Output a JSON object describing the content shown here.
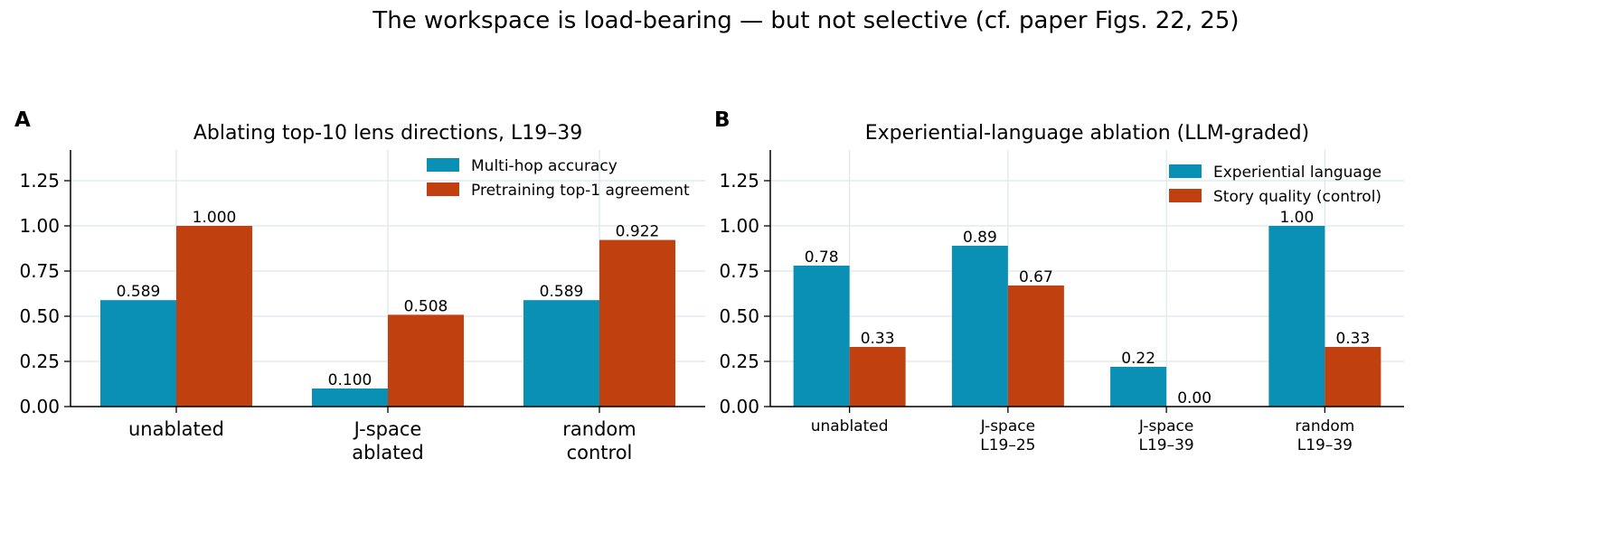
{
  "suptitle": "The workspace is load-bearing — but not selective (cf. paper Figs. 22, 25)",
  "colors": {
    "series1": "#0a8fb5",
    "series2": "#c1400f",
    "grid": "#dde6ea",
    "axis": "#000000"
  },
  "chart_data": [
    {
      "panel": "A",
      "type": "bar",
      "title": "Ablating top-10 lens directions, L19–39",
      "categories": [
        "unablated",
        "J-space\nablated",
        "random\ncontrol"
      ],
      "series": [
        {
          "name": "Multi-hop accuracy",
          "values": [
            0.589,
            0.1,
            0.589
          ],
          "labels": [
            "0.589",
            "0.100",
            "0.589"
          ]
        },
        {
          "name": "Pretraining top-1 agreement",
          "values": [
            1.0,
            0.508,
            0.922
          ],
          "labels": [
            "1.000",
            "0.508",
            "0.922"
          ]
        }
      ],
      "xlabel": "",
      "ylabel": "",
      "ylim": [
        0,
        1.42
      ],
      "yticks": [
        "0.00",
        "0.25",
        "0.50",
        "0.75",
        "1.00",
        "1.25"
      ],
      "grid": true,
      "legend": "top-right"
    },
    {
      "panel": "B",
      "type": "bar",
      "title": "Experiential-language ablation (LLM-graded)",
      "categories": [
        "unablated",
        "J-space\nL19–25",
        "J-space\nL19–39",
        "random\nL19–39"
      ],
      "series": [
        {
          "name": "Experiential language",
          "values": [
            0.78,
            0.89,
            0.22,
            1.0
          ],
          "labels": [
            "0.78",
            "0.89",
            "0.22",
            "1.00"
          ]
        },
        {
          "name": "Story quality (control)",
          "values": [
            0.33,
            0.67,
            0.0,
            0.33
          ],
          "labels": [
            "0.33",
            "0.67",
            "0.00",
            "0.33"
          ]
        }
      ],
      "xlabel": "",
      "ylabel": "",
      "ylim": [
        0,
        1.42
      ],
      "yticks": [
        "0.00",
        "0.25",
        "0.50",
        "0.75",
        "1.00",
        "1.25"
      ],
      "grid": true,
      "legend": "top-right"
    }
  ]
}
